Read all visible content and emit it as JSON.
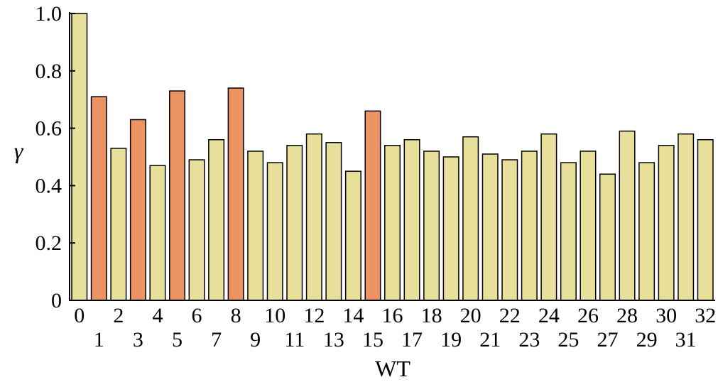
{
  "chart_data": {
    "type": "bar",
    "categories": [
      "0",
      "1",
      "2",
      "3",
      "4",
      "5",
      "6",
      "7",
      "8",
      "9",
      "10",
      "11",
      "12",
      "13",
      "14",
      "15",
      "16",
      "17",
      "18",
      "19",
      "20",
      "21",
      "22",
      "23",
      "24",
      "25",
      "26",
      "27",
      "28",
      "29",
      "30",
      "31",
      "32"
    ],
    "values": [
      1.0,
      0.71,
      0.53,
      0.63,
      0.47,
      0.73,
      0.49,
      0.56,
      0.74,
      0.52,
      0.48,
      0.54,
      0.58,
      0.55,
      0.45,
      0.66,
      0.54,
      0.56,
      0.52,
      0.5,
      0.57,
      0.51,
      0.49,
      0.52,
      0.58,
      0.48,
      0.52,
      0.44,
      0.59,
      0.48,
      0.54,
      0.58,
      0.56
    ],
    "highlighted": [
      "1",
      "3",
      "5",
      "8",
      "15"
    ],
    "colors": {
      "normal": "#e8e09a",
      "highlight": "#eb9362"
    },
    "xlabel": "WT",
    "ylabel": "γ",
    "ylim": [
      0,
      1.0
    ],
    "yticks": [
      "0",
      "0.2",
      "0.4",
      "0.6",
      "0.8",
      "1.0"
    ],
    "grid": false,
    "legend": "none"
  }
}
